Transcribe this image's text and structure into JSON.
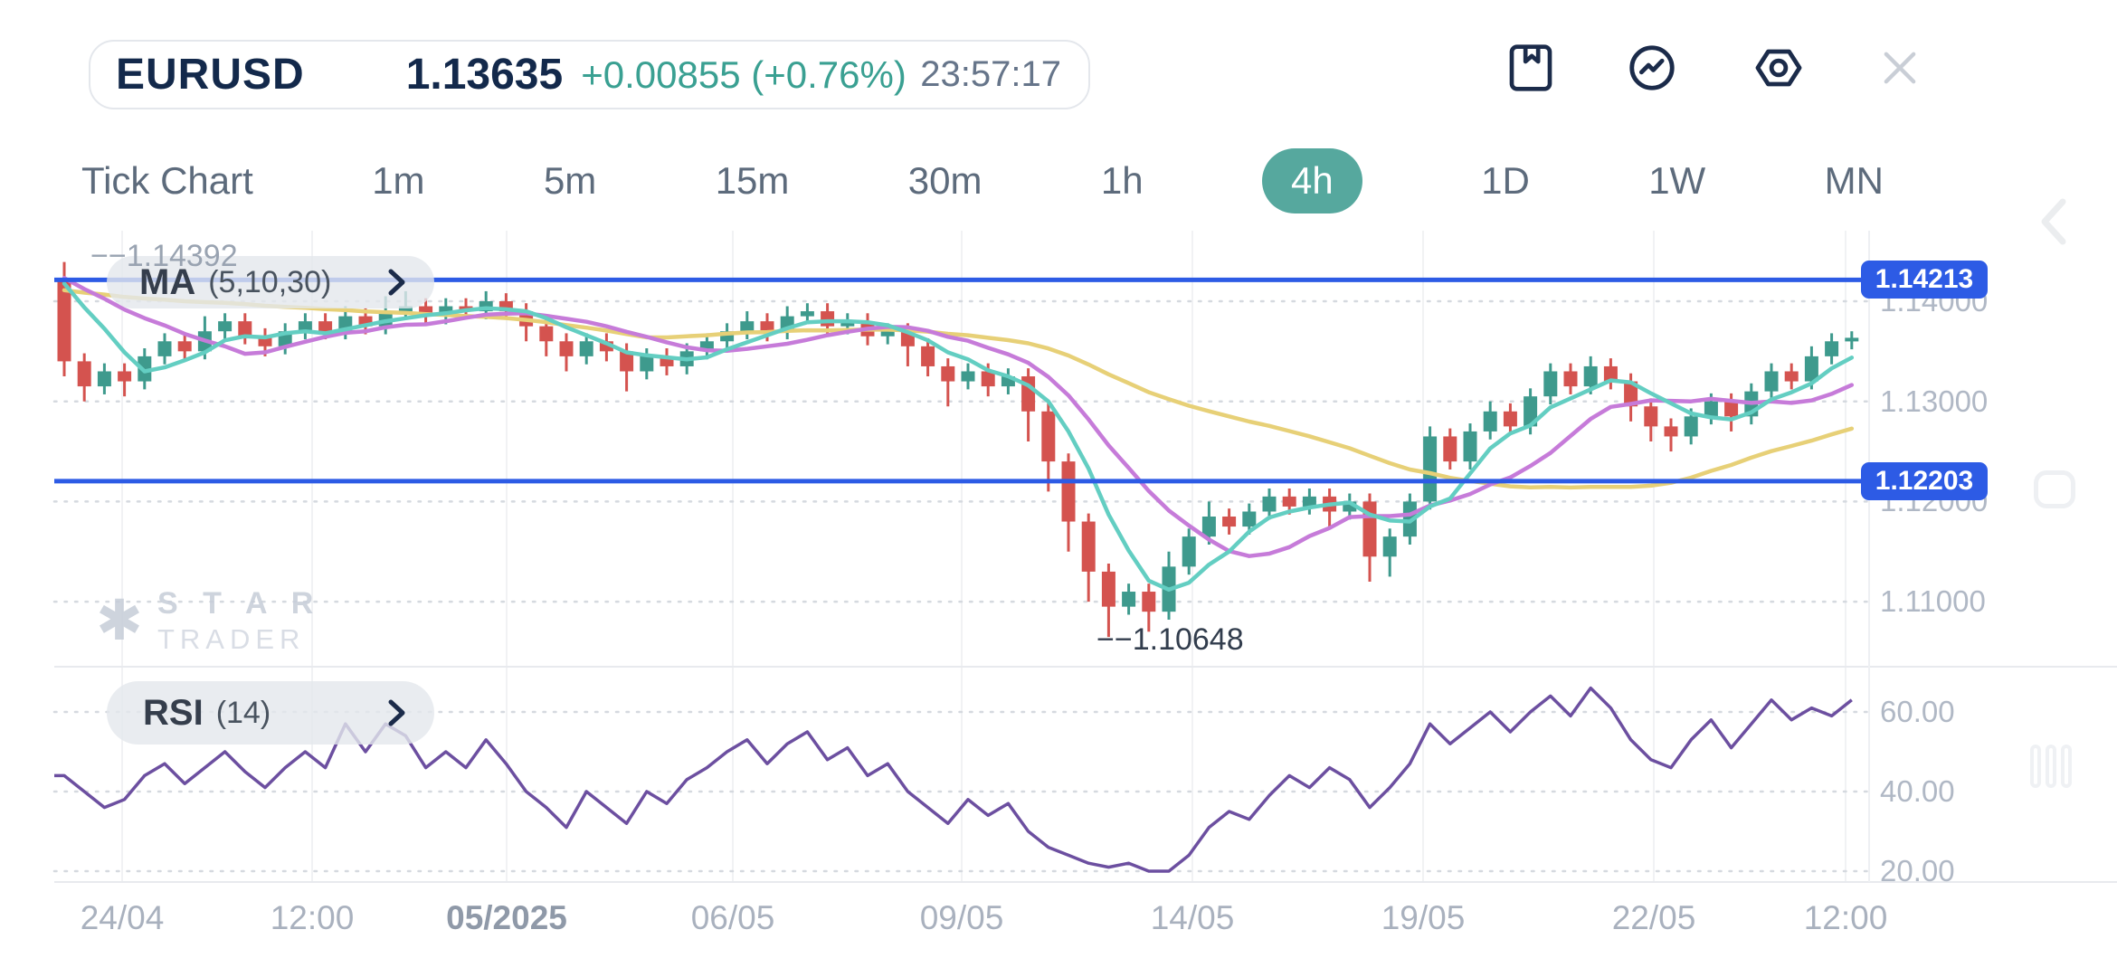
{
  "header": {
    "symbol": "EURUSD",
    "price": "1.13635",
    "change": "+0.00855 (+0.76%)",
    "time": "23:57:17"
  },
  "toolbar_icons": [
    "bookmark-icon",
    "chart-line-icon",
    "settings-icon",
    "close-icon"
  ],
  "timeframes": {
    "items": [
      {
        "label": "Tick Chart",
        "active": false
      },
      {
        "label": "1m",
        "active": false
      },
      {
        "label": "5m",
        "active": false
      },
      {
        "label": "15m",
        "active": false
      },
      {
        "label": "30m",
        "active": false
      },
      {
        "label": "1h",
        "active": false
      },
      {
        "label": "4h",
        "active": true
      },
      {
        "label": "1D",
        "active": false
      },
      {
        "label": "1W",
        "active": false
      },
      {
        "label": "MN",
        "active": false
      }
    ]
  },
  "ma_legend": {
    "name": "MA",
    "params": "(5,10,30)"
  },
  "rsi_legend": {
    "name": "RSI",
    "params": "(14)"
  },
  "watermark": {
    "brand_top": "S T A R",
    "brand_bottom": "TRADER",
    "star_glyph": "✱"
  },
  "markers": {
    "high": {
      "text": "−−1.14392",
      "value": 1.14392
    },
    "low": {
      "text": "−−1.10648",
      "value": 1.10648
    }
  },
  "levels": [
    {
      "text": "1.14213",
      "value": 1.14213
    },
    {
      "text": "1.12203",
      "value": 1.12203
    }
  ],
  "price_axis": {
    "labels": [
      {
        "text": "1.14000",
        "value": 1.14
      },
      {
        "text": "1.13000",
        "value": 1.13
      },
      {
        "text": "1.12000",
        "value": 1.12
      },
      {
        "text": "1.11000",
        "value": 1.11
      }
    ]
  },
  "rsi_axis": {
    "labels": [
      {
        "text": "60.00",
        "value": 60
      },
      {
        "text": "40.00",
        "value": 40
      },
      {
        "text": "20.00",
        "value": 20
      }
    ]
  },
  "x_axis": {
    "labels": [
      {
        "text": "24/04",
        "bold": false
      },
      {
        "text": "12:00",
        "bold": false
      },
      {
        "text": "05/2025",
        "bold": true
      },
      {
        "text": "06/05",
        "bold": false
      },
      {
        "text": "09/05",
        "bold": false
      },
      {
        "text": "14/05",
        "bold": false
      },
      {
        "text": "19/05",
        "bold": false
      },
      {
        "text": "22/05",
        "bold": false
      },
      {
        "text": "12:00",
        "bold": false
      }
    ]
  },
  "colors": {
    "accent_teal": "#56A89E",
    "change_teal": "#3AA092",
    "navy": "#13294B",
    "candle_up": "#3E9A8D",
    "candle_down": "#D4534F",
    "ma5": "#63CEC2",
    "ma10": "#C67BD9",
    "ma30": "#E7D077",
    "rsi": "#6C4FA0",
    "level_blue": "#2D5BE5",
    "grid_vertical": "#F1F2F4",
    "grid_dotted": "#D5D9DF",
    "separator": "#E8EAEE",
    "axis_text": "#B0B8C5"
  },
  "chart_data": {
    "type": "candlestick",
    "symbol": "EURUSD",
    "timeframe": "4h",
    "overlays": [
      {
        "type": "sma",
        "periods": [
          5,
          10,
          30
        ]
      }
    ],
    "sub_indicator": {
      "type": "rsi",
      "period": 14,
      "axis_ticks": [
        60,
        40,
        20
      ]
    },
    "support_resistance_levels": [
      1.14213,
      1.12203
    ],
    "high_label": 1.14392,
    "low_label": 1.10648,
    "last_price": 1.13635,
    "price_axis_ticks": [
      1.14,
      1.13,
      1.12,
      1.11
    ],
    "candles": [
      [
        1.142,
        1.14392,
        1.1325,
        1.134
      ],
      [
        1.134,
        1.1348,
        1.13,
        1.1315
      ],
      [
        1.1315,
        1.1338,
        1.1307,
        1.133
      ],
      [
        1.133,
        1.1338,
        1.1305,
        1.132
      ],
      [
        1.132,
        1.1353,
        1.1312,
        1.1345
      ],
      [
        1.1345,
        1.1368,
        1.1337,
        1.136
      ],
      [
        1.136,
        1.1368,
        1.1342,
        1.135
      ],
      [
        1.135,
        1.1385,
        1.1342,
        1.137
      ],
      [
        1.137,
        1.1388,
        1.1362,
        1.138
      ],
      [
        1.138,
        1.1388,
        1.1357,
        1.1365
      ],
      [
        1.1365,
        1.1373,
        1.1345,
        1.1355
      ],
      [
        1.1355,
        1.1378,
        1.1347,
        1.137
      ],
      [
        1.137,
        1.1388,
        1.1362,
        1.138
      ],
      [
        1.138,
        1.1388,
        1.1362,
        1.137
      ],
      [
        1.137,
        1.1395,
        1.1362,
        1.1385
      ],
      [
        1.1385,
        1.1393,
        1.1367,
        1.1375
      ],
      [
        1.1375,
        1.1405,
        1.1367,
        1.139
      ],
      [
        1.139,
        1.141,
        1.1382,
        1.1395
      ],
      [
        1.1395,
        1.1403,
        1.1377,
        1.1385
      ],
      [
        1.1385,
        1.1403,
        1.1377,
        1.1395
      ],
      [
        1.1395,
        1.1403,
        1.1382,
        1.139
      ],
      [
        1.139,
        1.141,
        1.1382,
        1.14
      ],
      [
        1.14,
        1.1408,
        1.1382,
        1.139
      ],
      [
        1.139,
        1.1398,
        1.136,
        1.1375
      ],
      [
        1.1375,
        1.1383,
        1.1345,
        1.136
      ],
      [
        1.136,
        1.1368,
        1.133,
        1.1345
      ],
      [
        1.1345,
        1.1368,
        1.1337,
        1.136
      ],
      [
        1.136,
        1.1368,
        1.134,
        1.135
      ],
      [
        1.135,
        1.1358,
        1.131,
        1.133
      ],
      [
        1.133,
        1.1353,
        1.1322,
        1.1345
      ],
      [
        1.1345,
        1.1353,
        1.1326,
        1.1335
      ],
      [
        1.1335,
        1.1358,
        1.1327,
        1.135
      ],
      [
        1.135,
        1.1368,
        1.1342,
        1.136
      ],
      [
        1.136,
        1.1378,
        1.1352,
        1.137
      ],
      [
        1.137,
        1.139,
        1.1362,
        1.138
      ],
      [
        1.138,
        1.1388,
        1.136,
        1.137
      ],
      [
        1.137,
        1.1395,
        1.1362,
        1.1385
      ],
      [
        1.1385,
        1.1398,
        1.1377,
        1.139
      ],
      [
        1.139,
        1.1398,
        1.1366,
        1.1375
      ],
      [
        1.1375,
        1.1388,
        1.1367,
        1.138
      ],
      [
        1.138,
        1.1388,
        1.1356,
        1.1365
      ],
      [
        1.1365,
        1.1378,
        1.1357,
        1.137
      ],
      [
        1.137,
        1.1378,
        1.1335,
        1.1355
      ],
      [
        1.1355,
        1.1363,
        1.1325,
        1.1335
      ],
      [
        1.1335,
        1.1343,
        1.1295,
        1.132
      ],
      [
        1.132,
        1.1338,
        1.1312,
        1.133
      ],
      [
        1.133,
        1.1338,
        1.1305,
        1.1315
      ],
      [
        1.1315,
        1.1333,
        1.1307,
        1.1325
      ],
      [
        1.1325,
        1.1333,
        1.126,
        1.129
      ],
      [
        1.129,
        1.1298,
        1.121,
        1.124
      ],
      [
        1.124,
        1.1248,
        1.115,
        1.118
      ],
      [
        1.118,
        1.1188,
        1.11,
        1.113
      ],
      [
        1.113,
        1.1138,
        1.10648,
        1.1095
      ],
      [
        1.1095,
        1.1118,
        1.1087,
        1.111
      ],
      [
        1.111,
        1.1118,
        1.107,
        1.109
      ],
      [
        1.109,
        1.115,
        1.1082,
        1.1135
      ],
      [
        1.1135,
        1.1173,
        1.1127,
        1.1165
      ],
      [
        1.1165,
        1.12,
        1.1157,
        1.1185
      ],
      [
        1.1185,
        1.1193,
        1.1167,
        1.1175
      ],
      [
        1.1175,
        1.1198,
        1.1167,
        1.119
      ],
      [
        1.119,
        1.1213,
        1.1182,
        1.1205
      ],
      [
        1.1205,
        1.1213,
        1.1187,
        1.1195
      ],
      [
        1.1195,
        1.1213,
        1.1187,
        1.1205
      ],
      [
        1.1205,
        1.1213,
        1.1175,
        1.119
      ],
      [
        1.119,
        1.1208,
        1.1182,
        1.12
      ],
      [
        1.12,
        1.1208,
        1.112,
        1.1145
      ],
      [
        1.1145,
        1.1173,
        1.1125,
        1.1165
      ],
      [
        1.1165,
        1.1208,
        1.1157,
        1.12
      ],
      [
        1.12,
        1.1275,
        1.1192,
        1.1265
      ],
      [
        1.1265,
        1.1273,
        1.1232,
        1.124
      ],
      [
        1.124,
        1.1278,
        1.1232,
        1.127
      ],
      [
        1.127,
        1.13,
        1.1262,
        1.129
      ],
      [
        1.129,
        1.1298,
        1.1267,
        1.1275
      ],
      [
        1.1275,
        1.1313,
        1.1267,
        1.1305
      ],
      [
        1.1305,
        1.1338,
        1.1297,
        1.133
      ],
      [
        1.133,
        1.1338,
        1.1307,
        1.1315
      ],
      [
        1.1315,
        1.1345,
        1.1307,
        1.1335
      ],
      [
        1.1335,
        1.1343,
        1.1312,
        1.132
      ],
      [
        1.132,
        1.1328,
        1.128,
        1.1295
      ],
      [
        1.1295,
        1.1303,
        1.126,
        1.1275
      ],
      [
        1.1275,
        1.1283,
        1.125,
        1.1265
      ],
      [
        1.1265,
        1.1293,
        1.1257,
        1.1285
      ],
      [
        1.1285,
        1.1308,
        1.1277,
        1.13
      ],
      [
        1.13,
        1.1308,
        1.127,
        1.1285
      ],
      [
        1.1285,
        1.1318,
        1.1277,
        1.131
      ],
      [
        1.131,
        1.1338,
        1.1302,
        1.133
      ],
      [
        1.133,
        1.1338,
        1.1312,
        1.132
      ],
      [
        1.132,
        1.1355,
        1.1312,
        1.1345
      ],
      [
        1.1345,
        1.1368,
        1.1337,
        1.136
      ],
      [
        1.136,
        1.137,
        1.1352,
        1.13635
      ]
    ],
    "rsi_values": [
      44,
      40,
      36,
      38,
      44,
      47,
      42,
      46,
      50,
      45,
      41,
      46,
      50,
      46,
      57,
      50,
      57,
      54,
      46,
      50,
      46,
      53,
      47,
      40,
      36,
      31,
      40,
      36,
      32,
      40,
      37,
      43,
      46,
      50,
      53,
      47,
      52,
      55,
      48,
      51,
      44,
      47,
      40,
      36,
      32,
      38,
      34,
      37,
      30,
      26,
      24,
      22,
      21,
      22,
      20,
      20,
      24,
      31,
      35,
      33,
      39,
      44,
      41,
      46,
      43,
      36,
      41,
      47,
      57,
      52,
      56,
      60,
      55,
      60,
      64,
      59,
      66,
      61,
      53,
      48,
      46,
      53,
      58,
      51,
      57,
      63,
      58,
      61,
      59,
      63
    ]
  }
}
